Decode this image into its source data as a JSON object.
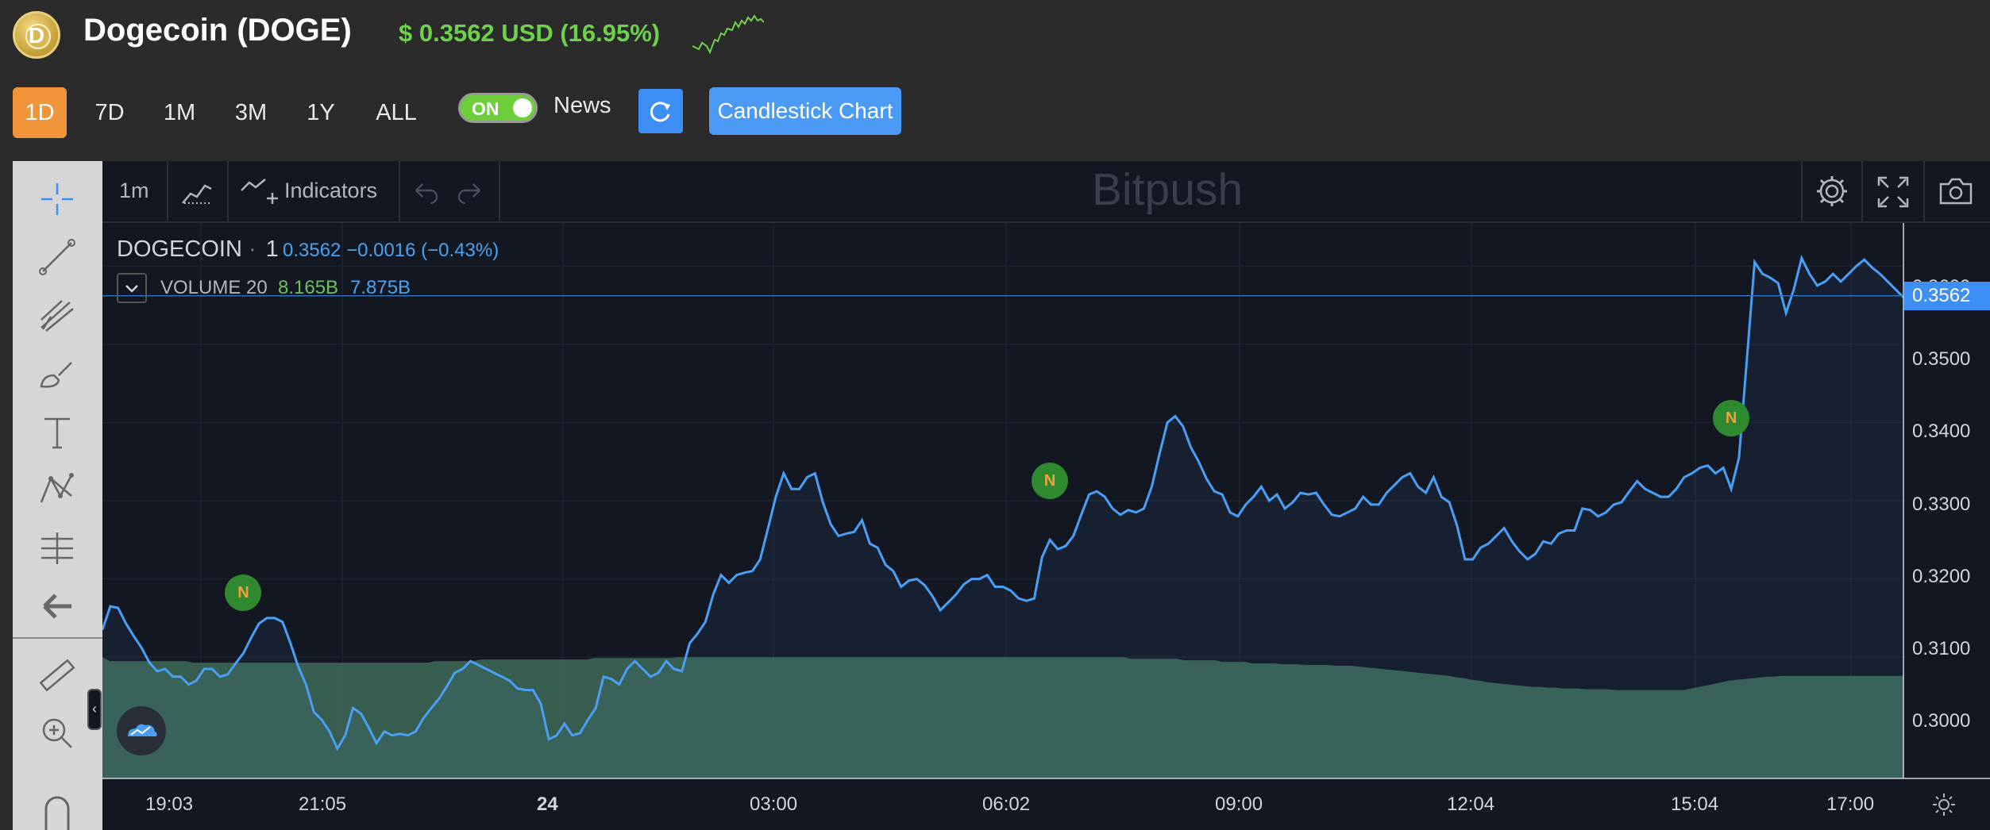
{
  "header": {
    "coin_name": "Dogecoin (DOGE)",
    "price_text": "$ 0.3562 USD (16.95%)",
    "logo_letter": "D"
  },
  "ranges": [
    {
      "label": "1D",
      "active": true
    },
    {
      "label": "7D",
      "active": false
    },
    {
      "label": "1M",
      "active": false
    },
    {
      "label": "3M",
      "active": false
    },
    {
      "label": "1Y",
      "active": false
    },
    {
      "label": "ALL",
      "active": false
    }
  ],
  "news_toggle": {
    "state_label": "ON",
    "label": "News"
  },
  "candlestick_label": "Candlestick Chart",
  "chart_toolbar": {
    "interval": "1m",
    "indicators_label": "Indicators",
    "watermark": "Bitpush"
  },
  "legend": {
    "symbol": "DOGECOIN",
    "interval": "1",
    "values": "0.3562  −0.0016 (−0.43%)",
    "volume_label": "VOLUME 20",
    "volume_value_1": "8.165B",
    "volume_value_2": "7.875B"
  },
  "price_axis": [
    "0.3600",
    "0.3500",
    "0.3400",
    "0.3300",
    "0.3200",
    "0.3100",
    "0.3000"
  ],
  "current_price": "0.3562",
  "time_axis": [
    "19:03",
    "21:05",
    "24",
    "03:00",
    "06:02",
    "09:00",
    "12:04",
    "15:04",
    "17:00"
  ],
  "news_marker_label": "N",
  "colors": {
    "line": "#4a9ff5",
    "volume": "#3e6b57",
    "active_range": "#f0953a",
    "price_up": "#6dd14a"
  },
  "chart_data": {
    "type": "line",
    "title": "",
    "xlabel": "",
    "ylabel": "",
    "ylim": [
      0.2945,
      0.3655
    ],
    "x_ticks": [
      "19:03",
      "21:05",
      "24",
      "03:00",
      "06:02",
      "09:00",
      "12:04",
      "15:04",
      "17:00"
    ],
    "price": [
      0.3135,
      0.3165,
      0.3163,
      0.3143,
      0.3127,
      0.3112,
      0.3093,
      0.3082,
      0.3085,
      0.3075,
      0.3075,
      0.3065,
      0.307,
      0.3085,
      0.3085,
      0.3075,
      0.3078,
      0.3092,
      0.3105,
      0.3125,
      0.3143,
      0.315,
      0.315,
      0.3145,
      0.3118,
      0.3088,
      0.3065,
      0.303,
      0.302,
      0.3005,
      0.2983,
      0.3,
      0.3035,
      0.3028,
      0.301,
      0.299,
      0.3005,
      0.3,
      0.3002,
      0.3,
      0.3005,
      0.3022,
      0.3035,
      0.3047,
      0.3063,
      0.308,
      0.3085,
      0.3095,
      0.309,
      0.3085,
      0.308,
      0.3075,
      0.307,
      0.306,
      0.3058,
      0.3058,
      0.304,
      0.2995,
      0.3,
      0.3015,
      0.3,
      0.3003,
      0.302,
      0.3035,
      0.3075,
      0.3072,
      0.3065,
      0.3085,
      0.3095,
      0.3085,
      0.3075,
      0.308,
      0.3095,
      0.3085,
      0.3082,
      0.3118,
      0.313,
      0.3145,
      0.318,
      0.3205,
      0.3195,
      0.3205,
      0.3208,
      0.321,
      0.3225,
      0.3265,
      0.3305,
      0.3335,
      0.3315,
      0.3315,
      0.333,
      0.3335,
      0.3298,
      0.327,
      0.3255,
      0.3258,
      0.326,
      0.3275,
      0.3245,
      0.324,
      0.3218,
      0.321,
      0.319,
      0.3198,
      0.32,
      0.3192,
      0.3178,
      0.316,
      0.317,
      0.318,
      0.3193,
      0.32,
      0.32,
      0.3205,
      0.319,
      0.319,
      0.3185,
      0.3175,
      0.3172,
      0.3175,
      0.3228,
      0.325,
      0.3238,
      0.3242,
      0.3255,
      0.3282,
      0.3308,
      0.3312,
      0.3305,
      0.329,
      0.3282,
      0.3288,
      0.3285,
      0.329,
      0.3318,
      0.336,
      0.34,
      0.3408,
      0.3395,
      0.3368,
      0.335,
      0.3328,
      0.3312,
      0.3308,
      0.3285,
      0.328,
      0.3295,
      0.3305,
      0.3318,
      0.33,
      0.3308,
      0.329,
      0.3298,
      0.331,
      0.3308,
      0.331,
      0.3295,
      0.3282,
      0.328,
      0.3285,
      0.329,
      0.3305,
      0.3295,
      0.3295,
      0.331,
      0.332,
      0.333,
      0.3335,
      0.3318,
      0.331,
      0.333,
      0.3305,
      0.3298,
      0.3268,
      0.3225,
      0.3225,
      0.324,
      0.3245,
      0.3255,
      0.3265,
      0.3248,
      0.3235,
      0.3225,
      0.3232,
      0.3248,
      0.3245,
      0.3258,
      0.3262,
      0.3262,
      0.329,
      0.3288,
      0.328,
      0.3285,
      0.3295,
      0.3298,
      0.3312,
      0.3325,
      0.3315,
      0.331,
      0.3305,
      0.3305,
      0.3315,
      0.333,
      0.3335,
      0.3342,
      0.3345,
      0.3335,
      0.3342,
      0.3315,
      0.3355,
      0.348,
      0.3605,
      0.359,
      0.3585,
      0.3578,
      0.354,
      0.357,
      0.361,
      0.359,
      0.3575,
      0.358,
      0.359,
      0.358,
      0.359,
      0.36,
      0.3608,
      0.3598,
      0.359,
      0.358,
      0.357,
      0.356
    ],
    "volume_level": [
      0.31,
      0.3095,
      0.3095,
      0.3095,
      0.3095,
      0.3095,
      0.3095,
      0.3095,
      0.3095,
      0.3095,
      0.3095,
      0.3095,
      0.3093,
      0.3093,
      0.3093,
      0.3093,
      0.3093,
      0.3093,
      0.3093,
      0.3093,
      0.3093,
      0.3093,
      0.3093,
      0.3093,
      0.3093,
      0.3093,
      0.3093,
      0.3093,
      0.3093,
      0.3093,
      0.3093,
      0.3093,
      0.3093,
      0.3093,
      0.3093,
      0.3093,
      0.3093,
      0.3093,
      0.3093,
      0.3093,
      0.3093,
      0.3093,
      0.3093,
      0.3093,
      0.3095,
      0.3095,
      0.3095,
      0.3095,
      0.3095,
      0.3095,
      0.3097,
      0.3097,
      0.3097,
      0.3097,
      0.3097,
      0.3097,
      0.3097,
      0.3097,
      0.3097,
      0.3097,
      0.3097,
      0.3097,
      0.3097,
      0.3097,
      0.3097,
      0.3099,
      0.3099,
      0.3099,
      0.3099,
      0.3099,
      0.3099,
      0.3099,
      0.3099,
      0.3099,
      0.3099,
      0.3099,
      0.31,
      0.31,
      0.31,
      0.31,
      0.31,
      0.31,
      0.31,
      0.31,
      0.31,
      0.31,
      0.31,
      0.31,
      0.31,
      0.31,
      0.31,
      0.31,
      0.31,
      0.31,
      0.31,
      0.31,
      0.31,
      0.31,
      0.31,
      0.31,
      0.31,
      0.31,
      0.31,
      0.31,
      0.31,
      0.31,
      0.31,
      0.31,
      0.31,
      0.31,
      0.31,
      0.31,
      0.31,
      0.31,
      0.31,
      0.31,
      0.31,
      0.31,
      0.31,
      0.31,
      0.31,
      0.31,
      0.31,
      0.31,
      0.31,
      0.31,
      0.31,
      0.31,
      0.31,
      0.31,
      0.31,
      0.31,
      0.31,
      0.31,
      0.31,
      0.31,
      0.3098,
      0.3098,
      0.3098,
      0.3098,
      0.3098,
      0.3098,
      0.3098,
      0.3096,
      0.3096,
      0.3096,
      0.3096,
      0.3096,
      0.3094,
      0.3094,
      0.3094,
      0.3094,
      0.3092,
      0.3092,
      0.3092,
      0.3092,
      0.3091,
      0.3091,
      0.3091,
      0.309,
      0.309,
      0.309,
      0.309,
      0.3089,
      0.3089,
      0.3089,
      0.3088,
      0.3087,
      0.3086,
      0.3085,
      0.3084,
      0.3083,
      0.3082,
      0.3081,
      0.308,
      0.3079,
      0.3078,
      0.3077,
      0.3076,
      0.3074,
      0.3073,
      0.3071,
      0.307,
      0.3068,
      0.3067,
      0.3066,
      0.3065,
      0.3064,
      0.3063,
      0.3062,
      0.3062,
      0.3061,
      0.3061,
      0.306,
      0.306,
      0.306,
      0.3059,
      0.3059,
      0.3059,
      0.3059,
      0.3058,
      0.3058,
      0.3058,
      0.3058,
      0.3058,
      0.3058,
      0.3058,
      0.3058,
      0.3058,
      0.3058,
      0.306,
      0.3062,
      0.3064,
      0.3066,
      0.3068,
      0.307,
      0.3071,
      0.3072,
      0.3073,
      0.3074,
      0.3075,
      0.3075,
      0.3076,
      0.3076,
      0.3076,
      0.3076,
      0.3076,
      0.3076,
      0.3076,
      0.3076,
      0.3076,
      0.3076,
      0.3076,
      0.3076,
      0.3076,
      0.3076,
      0.3076,
      0.3076,
      0.3076
    ],
    "news_markers": [
      {
        "index": 18,
        "price": 0.3145
      },
      {
        "index": 121,
        "price": 0.3288
      },
      {
        "index": 208,
        "price": 0.3368
      }
    ]
  }
}
